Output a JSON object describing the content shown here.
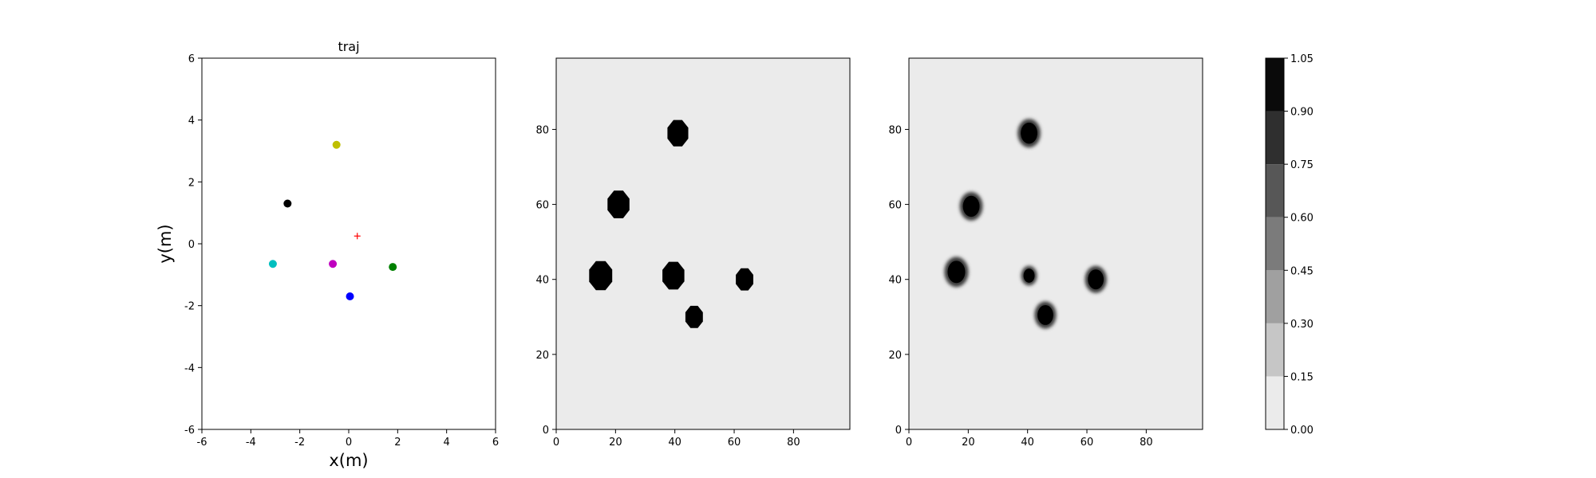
{
  "chart_data": [
    {
      "type": "scatter",
      "title": "traj",
      "xlabel": "x(m)",
      "ylabel": "y(m)",
      "xlim": [
        -6,
        6
      ],
      "ylim": [
        -6,
        6
      ],
      "xticks": [
        -6,
        -4,
        -2,
        0,
        2,
        4,
        6
      ],
      "yticks": [
        -6,
        -4,
        -2,
        0,
        2,
        4,
        6
      ],
      "grid": false,
      "points": [
        {
          "x": -0.5,
          "y": 3.2,
          "color": "#bfbf00",
          "marker": "circle"
        },
        {
          "x": -2.5,
          "y": 1.3,
          "color": "#000000",
          "marker": "circle"
        },
        {
          "x": 0.35,
          "y": 0.25,
          "color": "#ff0000",
          "marker": "plus"
        },
        {
          "x": -3.1,
          "y": -0.65,
          "color": "#00bfbf",
          "marker": "circle"
        },
        {
          "x": -0.65,
          "y": -0.65,
          "color": "#bf00bf",
          "marker": "circle"
        },
        {
          "x": 1.8,
          "y": -0.75,
          "color": "#008000",
          "marker": "circle"
        },
        {
          "x": 0.05,
          "y": -1.7,
          "color": "#0000ff",
          "marker": "circle"
        }
      ]
    },
    {
      "type": "heatmap",
      "title": "",
      "xlim": [
        0,
        99
      ],
      "ylim": [
        0,
        99
      ],
      "xticks": [
        0,
        20,
        40,
        60,
        80
      ],
      "yticks": [
        0,
        20,
        40,
        60,
        80
      ],
      "background_value": 0.05,
      "style": "octagon",
      "blobs": [
        {
          "x": 41,
          "y": 79,
          "r": 3.8
        },
        {
          "x": 21,
          "y": 60,
          "r": 4.0
        },
        {
          "x": 15,
          "y": 41,
          "r": 4.2
        },
        {
          "x": 39.5,
          "y": 41,
          "r": 4.0
        },
        {
          "x": 63.5,
          "y": 40,
          "r": 3.2
        },
        {
          "x": 46.5,
          "y": 30,
          "r": 3.2
        }
      ]
    },
    {
      "type": "heatmap",
      "title": "",
      "xlim": [
        0,
        99
      ],
      "ylim": [
        0,
        99
      ],
      "xticks": [
        0,
        20,
        40,
        60,
        80
      ],
      "yticks": [
        0,
        20,
        40,
        60,
        80
      ],
      "background_value": 0.05,
      "style": "fuzzy",
      "blobs": [
        {
          "x": 40.5,
          "y": 79,
          "r": 3.6
        },
        {
          "x": 21,
          "y": 59.5,
          "r": 3.6
        },
        {
          "x": 16,
          "y": 42,
          "r": 3.8
        },
        {
          "x": 40.5,
          "y": 41,
          "r": 2.4
        },
        {
          "x": 63,
          "y": 40,
          "r": 3.4
        },
        {
          "x": 46,
          "y": 30.5,
          "r": 3.4
        }
      ]
    },
    {
      "type": "colorbar",
      "levels": [
        0.0,
        0.15,
        0.3,
        0.45,
        0.6,
        0.75,
        0.9,
        1.05
      ],
      "tick_labels": [
        "0.00",
        "0.15",
        "0.30",
        "0.45",
        "0.60",
        "0.75",
        "0.90",
        "1.05"
      ],
      "band_colors": [
        "#ebebeb",
        "#c6c6c6",
        "#a0a0a0",
        "#7b7b7b",
        "#575757",
        "#2f2f2f",
        "#0a0a0a"
      ]
    }
  ]
}
